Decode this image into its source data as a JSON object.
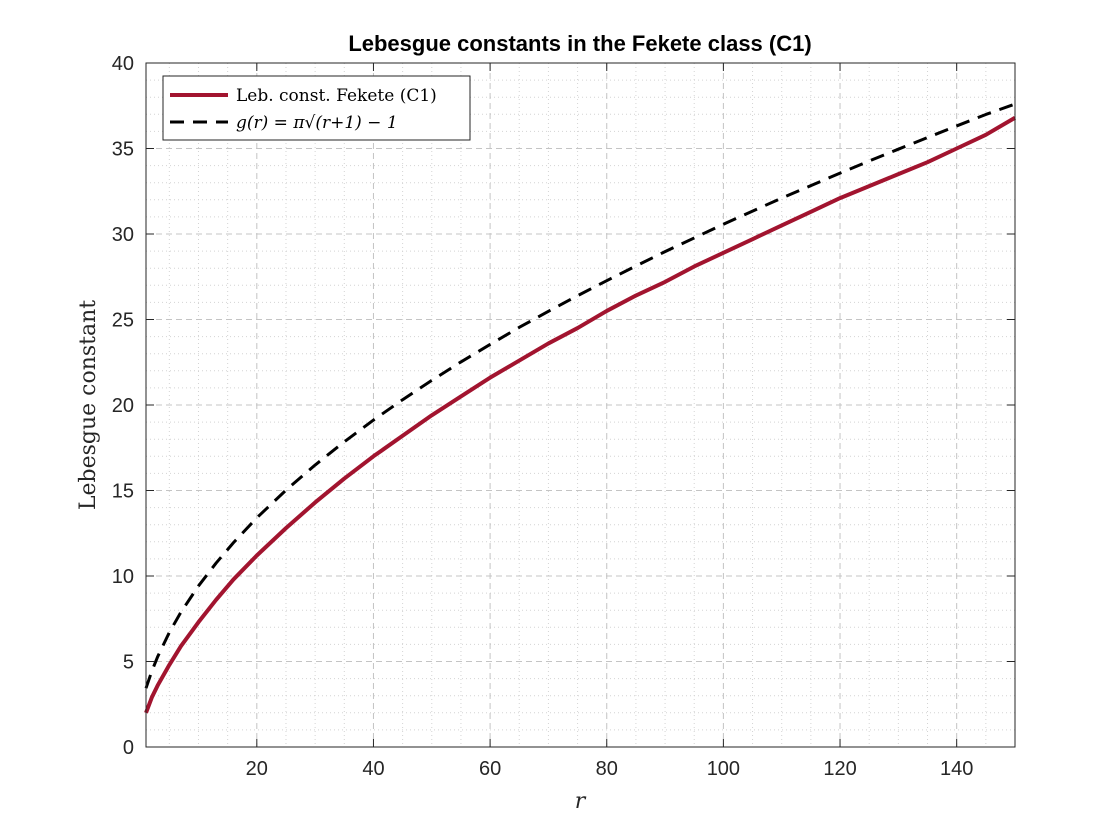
{
  "chart_data": {
    "type": "line",
    "title": "Lebesgue constants in the Fekete class (C1)",
    "xlabel": "r",
    "ylabel": "Lebesgue constant",
    "xlim": [
      1,
      150
    ],
    "ylim": [
      0,
      40
    ],
    "xticks": [
      20,
      40,
      60,
      80,
      100,
      120,
      140
    ],
    "yticks": [
      0,
      5,
      10,
      15,
      20,
      25,
      30,
      35,
      40
    ],
    "grid": "major and minor, dotted",
    "legend_position": "top-left",
    "x": [
      1,
      2,
      3,
      5,
      7,
      10,
      13,
      16,
      20,
      25,
      30,
      35,
      40,
      45,
      50,
      55,
      60,
      65,
      70,
      75,
      80,
      85,
      90,
      95,
      100,
      105,
      110,
      115,
      120,
      125,
      130,
      135,
      140,
      145,
      150
    ],
    "series": [
      {
        "name": "Leb. const. Fekete (C1)",
        "color": "#A2142F",
        "style": "solid",
        "values": [
          2.0,
          2.9,
          3.6,
          4.8,
          5.9,
          7.3,
          8.6,
          9.8,
          11.2,
          12.8,
          14.3,
          15.7,
          17.0,
          18.2,
          19.4,
          20.5,
          21.6,
          22.6,
          23.6,
          24.5,
          25.5,
          26.4,
          27.2,
          28.1,
          28.9,
          29.7,
          30.5,
          31.3,
          32.1,
          32.8,
          33.5,
          34.2,
          35.0,
          35.8,
          36.8
        ]
      },
      {
        "name": "g(r) = π√(r+1) − 1",
        "color": "#000000",
        "style": "dashed",
        "values": [
          3.44,
          4.44,
          5.28,
          6.7,
          7.89,
          9.42,
          10.75,
          11.95,
          13.4,
          15.02,
          16.49,
          17.85,
          19.12,
          20.31,
          21.44,
          22.52,
          23.54,
          24.54,
          25.48,
          26.39,
          27.27,
          28.13,
          28.97,
          29.77,
          30.57,
          31.34,
          32.1,
          32.83,
          33.56,
          34.27,
          34.96,
          35.64,
          36.32,
          36.99,
          37.6
        ]
      }
    ]
  }
}
